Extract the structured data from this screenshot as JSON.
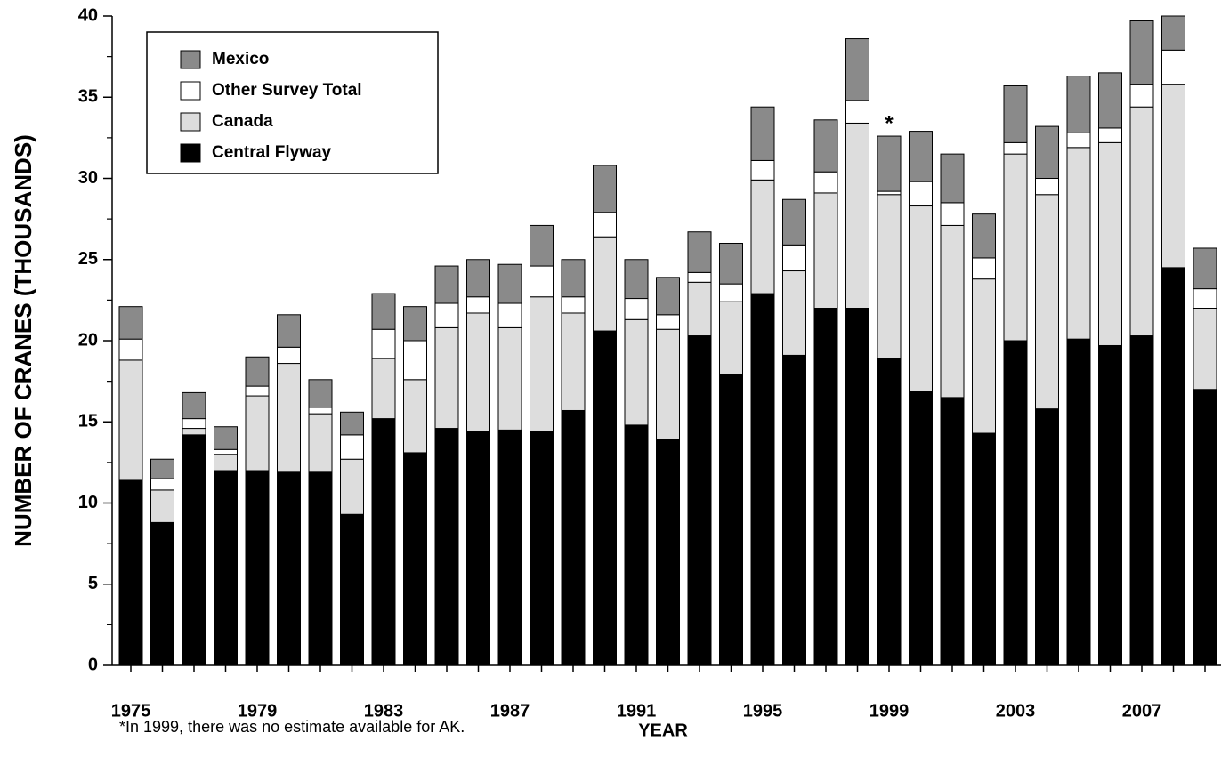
{
  "chart_data": {
    "type": "stacked-bar",
    "y_label": "NUMBER OF CRANES (THOUSANDS)",
    "x_label": "YEAR",
    "footnote": "*In 1999, there was no estimate available for AK.",
    "annotation": "*",
    "categories": [
      "1975",
      null,
      null,
      null,
      "1979",
      null,
      null,
      null,
      "1983",
      null,
      null,
      null,
      "1987",
      null,
      null,
      null,
      "1991",
      null,
      null,
      null,
      "1995",
      null,
      null,
      null,
      "1999",
      null,
      null,
      null,
      "2003",
      null,
      null,
      null,
      "2007",
      null,
      null
    ],
    "ylim": [
      0,
      40
    ],
    "yticks": [
      0,
      5,
      10,
      15,
      20,
      25,
      30,
      35,
      40
    ],
    "series": [
      {
        "name": "Central Flyway",
        "color": "#000000",
        "values": [
          11.4,
          8.8,
          14.2,
          12.0,
          12.0,
          11.9,
          11.9,
          9.3,
          15.2,
          13.1,
          14.6,
          14.4,
          14.5,
          14.4,
          15.7,
          20.6,
          14.8,
          13.9,
          20.3,
          17.9,
          22.9,
          19.1,
          22.0,
          22.0,
          18.9,
          16.9,
          16.5,
          14.3,
          20.0,
          15.8,
          20.1,
          19.7,
          20.3,
          24.5,
          17.0
        ]
      },
      {
        "name": "Canada",
        "color": "#dddddd",
        "values": [
          7.4,
          2.0,
          0.4,
          1.0,
          4.6,
          6.7,
          3.6,
          3.4,
          3.7,
          4.5,
          6.2,
          7.3,
          6.3,
          8.3,
          6.0,
          5.8,
          6.5,
          6.8,
          3.3,
          4.5,
          7.0,
          5.2,
          7.1,
          11.4,
          10.1,
          11.4,
          10.6,
          9.5,
          11.5,
          13.2,
          11.8,
          12.5,
          14.1,
          11.3,
          5.0
        ]
      },
      {
        "name": "Other Survey Total",
        "color": "#ffffff",
        "values": [
          1.3,
          0.7,
          0.6,
          0.3,
          0.6,
          1.0,
          0.4,
          1.5,
          1.8,
          2.4,
          1.5,
          1.0,
          1.5,
          1.9,
          1.0,
          1.5,
          1.3,
          0.9,
          0.6,
          1.1,
          1.2,
          1.6,
          1.3,
          1.4,
          0.2,
          1.5,
          1.4,
          1.3,
          0.7,
          1.0,
          0.9,
          0.9,
          1.4,
          2.1,
          1.2
        ]
      },
      {
        "name": "Mexico",
        "color": "#8a8a8a",
        "values": [
          2.0,
          1.2,
          1.6,
          1.4,
          1.8,
          2.0,
          1.7,
          1.4,
          2.2,
          2.1,
          2.3,
          2.3,
          2.4,
          2.5,
          2.3,
          2.9,
          2.4,
          2.3,
          2.5,
          2.5,
          3.3,
          2.8,
          3.2,
          3.8,
          3.4,
          3.1,
          3.0,
          2.7,
          3.5,
          3.2,
          3.5,
          3.4,
          3.9,
          2.1,
          2.5
        ]
      }
    ]
  }
}
